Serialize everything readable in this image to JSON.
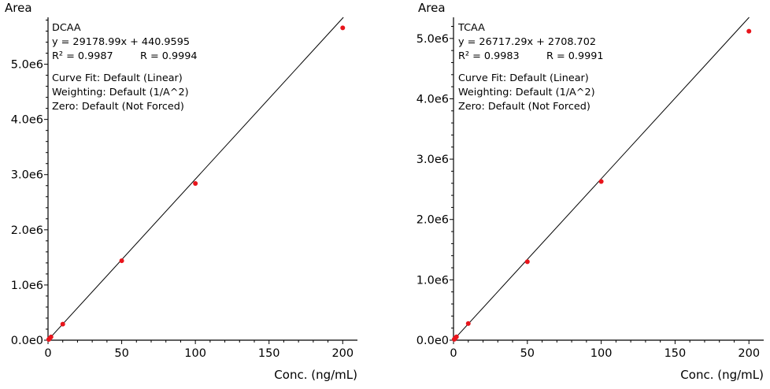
{
  "chart_data": [
    {
      "type": "scatter",
      "ylabel": "Area",
      "xlabel": "Conc. (ng/mL)",
      "xlim": [
        0,
        210
      ],
      "ylim": [
        0,
        5850000
      ],
      "xticks": [
        0,
        50,
        100,
        150,
        200
      ],
      "xtick_labels": [
        "0",
        "50",
        "100",
        "150",
        "200"
      ],
      "yticks": [
        0,
        1000000,
        2000000,
        3000000,
        4000000,
        5000000
      ],
      "ytick_labels": [
        "0.0e0",
        "1.0e6",
        "2.0e6",
        "3.0e6",
        "4.0e6",
        "5.0e6"
      ],
      "annotations": {
        "analyte": "DCAA",
        "equation": "y = 29178.99x + 440.9595",
        "r2": "R² = 0.9987",
        "r": "R = 0.9994",
        "curve_fit": "Curve Fit: Default (Linear)",
        "weighting": "Weighting: Default (1/A^2)",
        "zero": "Zero: Default (Not Forced)"
      },
      "fit": {
        "slope": 29178.99,
        "intercept": 440.9595
      },
      "line_color": "#000000",
      "point_color": "#e8141b",
      "points": [
        {
          "x": 0.5,
          "y": 14000
        },
        {
          "x": 1,
          "y": 29000
        },
        {
          "x": 2,
          "y": 58000
        },
        {
          "x": 10,
          "y": 290000
        },
        {
          "x": 50,
          "y": 1440000
        },
        {
          "x": 100,
          "y": 2840000
        },
        {
          "x": 200,
          "y": 5660000
        }
      ]
    },
    {
      "type": "scatter",
      "ylabel": "Area",
      "xlabel": "Conc. (ng/mL)",
      "xlim": [
        0,
        210
      ],
      "ylim": [
        0,
        5350000
      ],
      "xticks": [
        0,
        50,
        100,
        150,
        200
      ],
      "xtick_labels": [
        "0",
        "50",
        "100",
        "150",
        "200"
      ],
      "yticks": [
        0,
        1000000,
        2000000,
        3000000,
        4000000,
        5000000
      ],
      "ytick_labels": [
        "0.0e0",
        "1.0e6",
        "2.0e6",
        "3.0e6",
        "4.0e6",
        "5.0e6"
      ],
      "annotations": {
        "analyte": "TCAA",
        "equation": "y = 26717.29x + 2708.702",
        "r2": "R² = 0.9983",
        "r": "R = 0.9991",
        "curve_fit": "Curve Fit: Default (Linear)",
        "weighting": "Weighting: Default (1/A^2)",
        "zero": "Zero: Default (Not Forced)"
      },
      "fit": {
        "slope": 26717.29,
        "intercept": 2708.702
      },
      "line_color": "#000000",
      "point_color": "#e8141b",
      "points": [
        {
          "x": 0.5,
          "y": 14000
        },
        {
          "x": 1,
          "y": 28000
        },
        {
          "x": 2,
          "y": 55000
        },
        {
          "x": 10,
          "y": 275000
        },
        {
          "x": 50,
          "y": 1300000
        },
        {
          "x": 100,
          "y": 2630000
        },
        {
          "x": 200,
          "y": 5120000
        }
      ]
    }
  ]
}
